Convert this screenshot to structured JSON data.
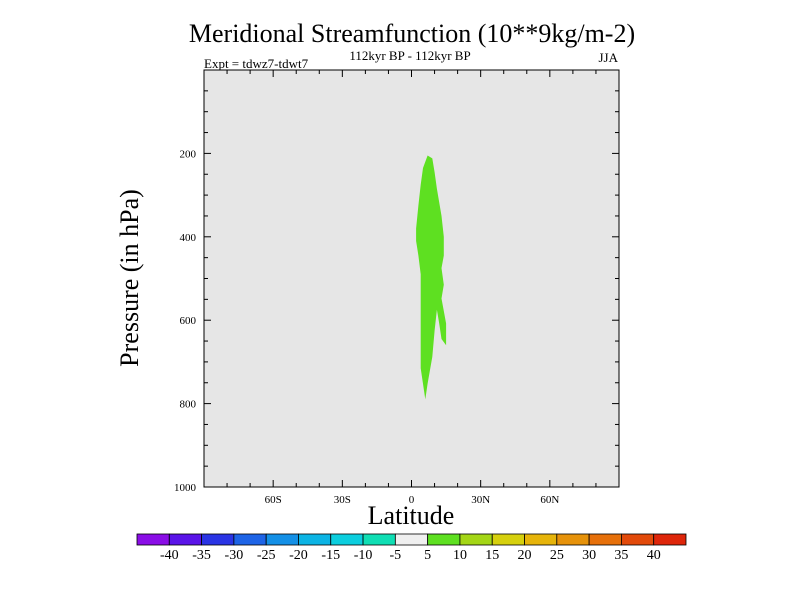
{
  "chart_data": {
    "type": "contour",
    "title": "Meridional Streamfunction (10**9kg/m-2)",
    "subtitle": "112kyr BP - 112kyr BP",
    "left_label": "Expt = tdwz7-tdwt7",
    "right_label": "JJA",
    "xlabel": "Latitude",
    "ylabel": "Pressure (in hPa)",
    "xlim": [
      -90,
      90
    ],
    "ylim": [
      1000,
      0
    ],
    "y_reversed": true,
    "grid": false,
    "background_color": "#e6e6e6",
    "x_ticks": [
      {
        "value": -60,
        "label": "60S"
      },
      {
        "value": -30,
        "label": "30S"
      },
      {
        "value": 0,
        "label": "0"
      },
      {
        "value": 30,
        "label": "30N"
      },
      {
        "value": 60,
        "label": "60N"
      }
    ],
    "y_ticks": [
      {
        "value": 200,
        "label": "200"
      },
      {
        "value": 400,
        "label": "400"
      },
      {
        "value": 600,
        "label": "600"
      },
      {
        "value": 800,
        "label": "800"
      },
      {
        "value": 1000,
        "label": "1000"
      }
    ],
    "filled_regions": [
      {
        "level_range": [
          5,
          10
        ],
        "color": "#5ee021",
        "outline": [
          [
            7,
            205
          ],
          [
            9,
            212
          ],
          [
            10,
            245
          ],
          [
            11,
            285
          ],
          [
            13,
            350
          ],
          [
            14,
            400
          ],
          [
            14,
            445
          ],
          [
            13,
            475
          ],
          [
            14,
            515
          ],
          [
            13,
            548
          ],
          [
            14,
            578
          ],
          [
            15,
            608
          ],
          [
            15,
            660
          ],
          [
            13,
            645
          ],
          [
            12,
            608
          ],
          [
            11,
            575
          ],
          [
            10,
            625
          ],
          [
            9,
            688
          ],
          [
            7,
            752
          ],
          [
            6,
            790
          ],
          [
            4,
            715
          ],
          [
            4,
            640
          ],
          [
            4,
            565
          ],
          [
            4,
            490
          ],
          [
            3,
            445
          ],
          [
            2,
            410
          ],
          [
            2,
            380
          ],
          [
            3,
            325
          ],
          [
            4,
            275
          ],
          [
            5,
            235
          ]
        ]
      }
    ],
    "colorbar": {
      "labels": [
        "-40",
        "-35",
        "-30",
        "-25",
        "-20",
        "-15",
        "-10",
        "-5",
        "5",
        "10",
        "15",
        "20",
        "25",
        "30",
        "35",
        "40"
      ],
      "colors": [
        "#8a0ee6",
        "#5a14e8",
        "#2a34e4",
        "#1e64e6",
        "#1490e6",
        "#0cb4e4",
        "#0ccede",
        "#10deb4",
        "#f0f0f0",
        "#5ee021",
        "#a4d616",
        "#d6d00e",
        "#e6b40a",
        "#e6920a",
        "#e6700a",
        "#e24a0a",
        "#de260a"
      ]
    }
  }
}
